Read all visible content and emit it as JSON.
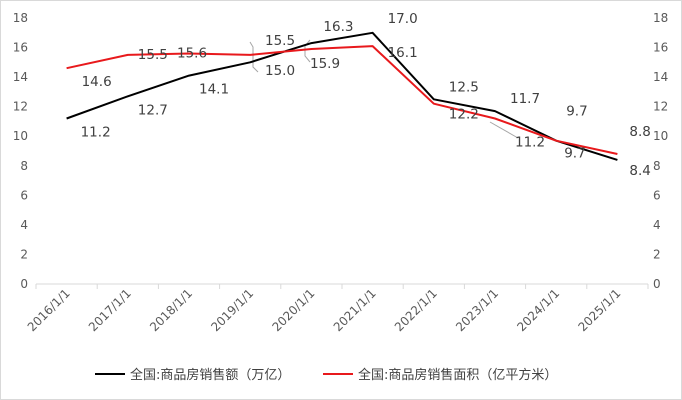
{
  "chart_data": {
    "type": "line",
    "categories": [
      "2016/1/1",
      "2017/1/1",
      "2018/1/1",
      "2019/1/1",
      "2020/1/1",
      "2021/1/1",
      "2022/1/1",
      "2023/1/1",
      "2024/1/1",
      "2025/1/1"
    ],
    "series": [
      {
        "name": "全国:商品房销售额（万亿）",
        "color": "#000000",
        "values": [
          11.2,
          12.7,
          14.1,
          15.0,
          16.3,
          17.0,
          12.5,
          11.7,
          9.7,
          8.4
        ],
        "labels": [
          "11.2",
          "12.7",
          "14.1",
          "15.0",
          "16.3",
          "17.0",
          "12.5",
          "11.7",
          "9.7",
          "8.4"
        ]
      },
      {
        "name": "全国:商品房销售面积（亿平方米）",
        "color": "#e8191c",
        "values": [
          14.6,
          15.5,
          15.6,
          15.5,
          15.9,
          16.1,
          12.2,
          11.2,
          9.7,
          8.8
        ],
        "labels": [
          "14.6",
          "15.5",
          "15.6",
          "15.5",
          "15.9",
          "16.1",
          "12.2",
          "11.2",
          "9.7",
          "8.8"
        ]
      }
    ],
    "left_axis": {
      "ylim": [
        0,
        18
      ],
      "ticks": [
        "0",
        "2",
        "4",
        "6",
        "8",
        "10",
        "12",
        "14",
        "16",
        "18"
      ]
    },
    "right_axis": {
      "ylim": [
        0,
        18
      ],
      "ticks": [
        "0",
        "2",
        "4",
        "6",
        "8",
        "10",
        "12",
        "14",
        "16",
        "18"
      ]
    },
    "grid": false,
    "legend_position": "bottom"
  }
}
